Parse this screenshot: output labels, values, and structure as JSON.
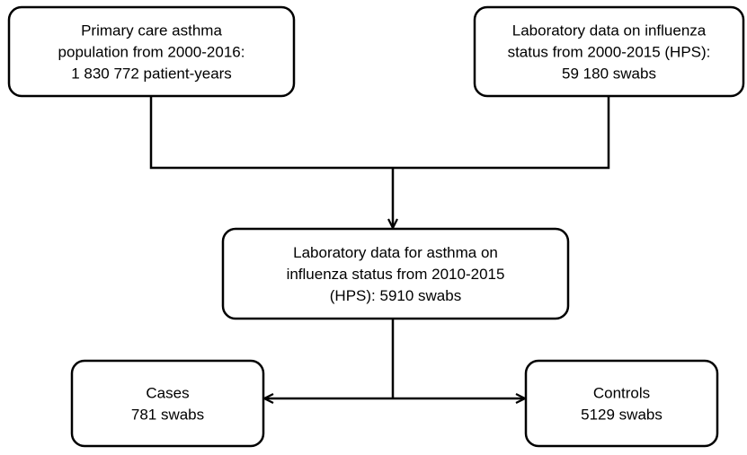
{
  "nodes": [
    {
      "lines": [
        "Primary care asthma",
        "population from 2000-2016:",
        "1 830 772 patient-years"
      ]
    },
    {
      "lines": [
        "Laboratory data on influenza",
        "status from 2000-2015 (HPS):",
        "59 180 swabs"
      ]
    },
    {
      "lines": [
        "Laboratory data for asthma on",
        "influenza status from 2010-2015",
        "(HPS): 5910 swabs"
      ]
    },
    {
      "lines": [
        "Cases",
        "781 swabs"
      ]
    },
    {
      "lines": [
        "Controls",
        "5129 swabs"
      ]
    }
  ]
}
